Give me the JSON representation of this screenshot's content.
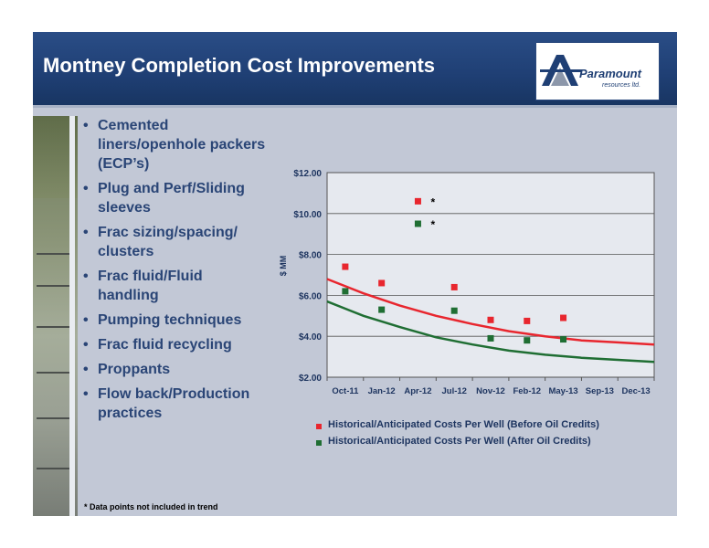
{
  "slide": {
    "title": "Montney Completion Cost Improvements",
    "logo": {
      "name": "Paramount",
      "subtitle": "resources ltd."
    },
    "bullets": [
      "Cemented liners/openhole packers (ECP’s)",
      "Plug and Perf/Sliding sleeves",
      "Frac sizing/spacing/ clusters",
      "Frac fluid/Fluid handling",
      "Pumping techniques",
      "Frac fluid recycling",
      "Proppants",
      "Flow back/Production practices"
    ],
    "footnote": "* Data points not included in trend",
    "bullet_char": "•"
  },
  "colors": {
    "header": "#1f3f74",
    "background": "#c2c8d6",
    "plot_bg": "#e6e9ef",
    "before_oil_credits": "#e8262e",
    "after_oil_credits": "#1f6e33",
    "text": "#2a4576"
  },
  "chart_data": {
    "type": "scatter",
    "ylabel": "$ MM",
    "categories": [
      "Oct-11",
      "Jan-12",
      "Apr-12",
      "Jul-12",
      "Nov-12",
      "Feb-12",
      "May-13",
      "Sep-13",
      "Dec-13"
    ],
    "ylim": [
      2.0,
      12.0
    ],
    "yticks": [
      "$2.00",
      "$4.00",
      "$6.00",
      "$8.00",
      "$10.00",
      "$12.00"
    ],
    "ytick_values": [
      2,
      4,
      6,
      8,
      10,
      12
    ],
    "grid": true,
    "series": [
      {
        "name": "Historical/Anticipated Costs Per Well (Before Oil Credits)",
        "color": "#e8262e",
        "points": [
          {
            "x": 0.5,
            "y": 7.4
          },
          {
            "x": 1.5,
            "y": 6.6
          },
          {
            "x": 2.5,
            "y": 10.6
          },
          {
            "x": 3.5,
            "y": 6.4
          },
          {
            "x": 4.5,
            "y": 4.8
          },
          {
            "x": 5.5,
            "y": 4.75
          },
          {
            "x": 6.5,
            "y": 4.9
          }
        ],
        "trend": [
          {
            "x": 0,
            "y": 6.8
          },
          {
            "x": 1,
            "y": 6.1
          },
          {
            "x": 2,
            "y": 5.5
          },
          {
            "x": 3,
            "y": 5.0
          },
          {
            "x": 4,
            "y": 4.6
          },
          {
            "x": 5,
            "y": 4.25
          },
          {
            "x": 6,
            "y": 4.0
          },
          {
            "x": 7,
            "y": 3.8
          },
          {
            "x": 8,
            "y": 3.7
          },
          {
            "x": 9,
            "y": 3.6
          }
        ]
      },
      {
        "name": "Historical/Anticipated Costs Per Well (After Oil Credits)",
        "color": "#1f6e33",
        "points": [
          {
            "x": 0.5,
            "y": 6.2
          },
          {
            "x": 1.5,
            "y": 5.3
          },
          {
            "x": 2.5,
            "y": 9.5
          },
          {
            "x": 3.5,
            "y": 5.25
          },
          {
            "x": 4.5,
            "y": 3.9
          },
          {
            "x": 5.5,
            "y": 3.8
          },
          {
            "x": 6.5,
            "y": 3.85
          }
        ],
        "trend": [
          {
            "x": 0,
            "y": 5.7
          },
          {
            "x": 1,
            "y": 5.0
          },
          {
            "x": 2,
            "y": 4.45
          },
          {
            "x": 3,
            "y": 3.95
          },
          {
            "x": 4,
            "y": 3.6
          },
          {
            "x": 5,
            "y": 3.3
          },
          {
            "x": 6,
            "y": 3.1
          },
          {
            "x": 7,
            "y": 2.95
          },
          {
            "x": 8,
            "y": 2.85
          },
          {
            "x": 9,
            "y": 2.75
          }
        ]
      }
    ],
    "annotations": [
      {
        "x": 2.5,
        "y": 10.6,
        "text": "*"
      },
      {
        "x": 2.5,
        "y": 9.5,
        "text": "*"
      }
    ],
    "legend_position": "bottom"
  }
}
